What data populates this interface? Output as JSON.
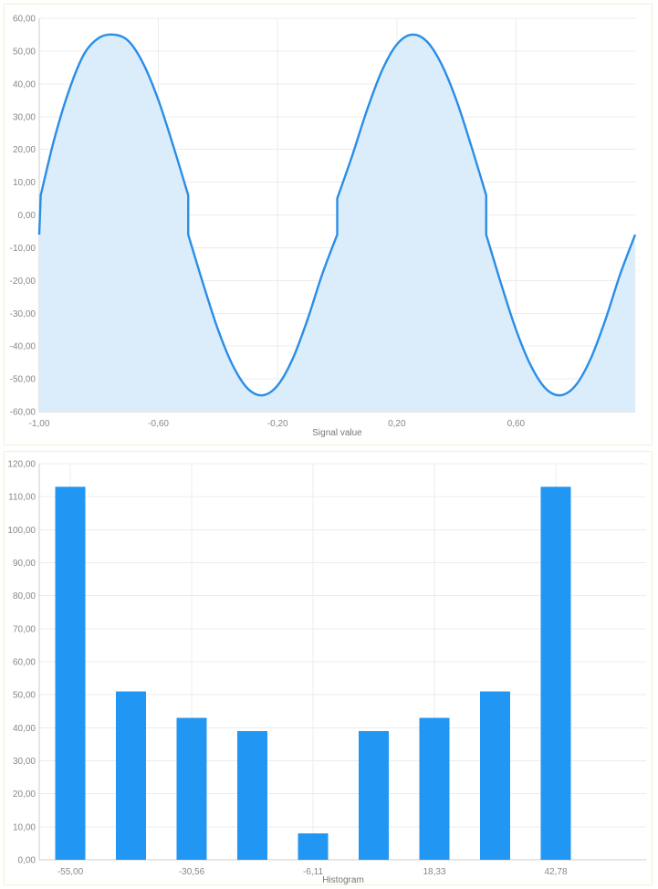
{
  "chart_data": [
    {
      "type": "area",
      "xlabel": "Signal value",
      "ylabel": "",
      "xlim": [
        -1.0,
        1.0
      ],
      "ylim": [
        -60,
        60
      ],
      "y_ticks": [
        "-60,00",
        "-50,00",
        "-40,00",
        "-30,00",
        "-20,00",
        "-10,00",
        "0,00",
        "10,00",
        "20,00",
        "30,00",
        "40,00",
        "50,00",
        "60,00"
      ],
      "x_ticks": [
        "-1,00",
        "-0,60",
        "-0,20",
        "0,20",
        "0,60"
      ],
      "x_tick_values": [
        -1.0,
        -0.6,
        -0.2,
        0.2,
        0.6
      ],
      "grid": true,
      "legend": "none",
      "series": [
        {
          "description_of_shape": "sine wave amplitude 55 with period 1, with a small offset discontinuity near zero crossings",
          "x": [
            -1.0,
            -0.995,
            -0.95,
            -0.9,
            -0.85,
            -0.8,
            -0.75,
            -0.7,
            -0.65,
            -0.6,
            -0.55,
            -0.5,
            -0.5,
            -0.45,
            -0.4,
            -0.35,
            -0.3,
            -0.25,
            -0.2,
            -0.15,
            -0.1,
            -0.05,
            0.0,
            0.0,
            0.05,
            0.1,
            0.15,
            0.2,
            0.25,
            0.3,
            0.35,
            0.4,
            0.45,
            0.5,
            0.5,
            0.55,
            0.6,
            0.65,
            0.7,
            0.75,
            0.8,
            0.85,
            0.9,
            0.95,
            1.0
          ],
          "y": [
            -6,
            6,
            23,
            38,
            49,
            54,
            55,
            53,
            46,
            35,
            21,
            6,
            -6,
            -21,
            -35,
            -46,
            -53,
            -55,
            -52,
            -44,
            -32,
            -18,
            -6,
            5,
            18,
            32,
            44,
            52,
            55,
            53,
            46,
            35,
            21,
            6,
            -6,
            -21,
            -35,
            -46,
            -53,
            -55,
            -52,
            -44,
            -32,
            -18,
            -6
          ]
        }
      ],
      "line_color": "#2a8ee6",
      "fill_color": "#dbedfb"
    },
    {
      "type": "bar",
      "xlabel": "Histogram",
      "ylabel": "",
      "ylim": [
        0,
        120
      ],
      "y_ticks": [
        "0,00",
        "10,00",
        "20,00",
        "30,00",
        "40,00",
        "50,00",
        "60,00",
        "70,00",
        "80,00",
        "90,00",
        "100,00",
        "110,00",
        "120,00"
      ],
      "x_ticks": [
        "-55,00",
        "-30,56",
        "-6,11",
        "18,33",
        "42,78"
      ],
      "bin_start": -55.0,
      "bin_width": 12.22,
      "values": [
        113,
        51,
        43,
        39,
        8,
        39,
        43,
        51,
        113
      ],
      "grid": true,
      "legend": "none",
      "bar_color": "#2196f3"
    }
  ]
}
